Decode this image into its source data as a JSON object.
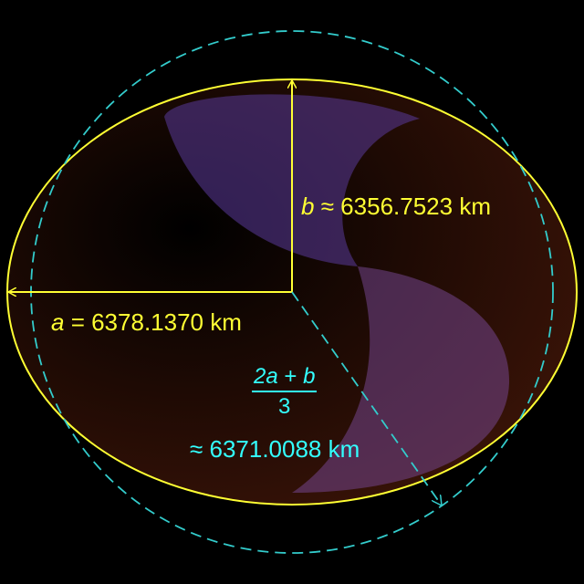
{
  "labels": {
    "b_var": "b",
    "b_text": " ≈ 6356.7523 km",
    "a_var": "a",
    "a_text": " = 6378.1370 km",
    "mean_num_a": "2a",
    "mean_num_plus": " + ",
    "mean_num_b": "b",
    "mean_den": "3",
    "mean_text": "≈ 6371.0088 km"
  },
  "colors": {
    "background": "#000000",
    "ellipse_fill": "#3a1208",
    "ellipse_stroke": "#ffff33",
    "sphere_stroke": "#33cccc",
    "shading": "#6b3fa0",
    "yellow_text": "#ffff33",
    "cyan_text": "#33ffff"
  }
}
